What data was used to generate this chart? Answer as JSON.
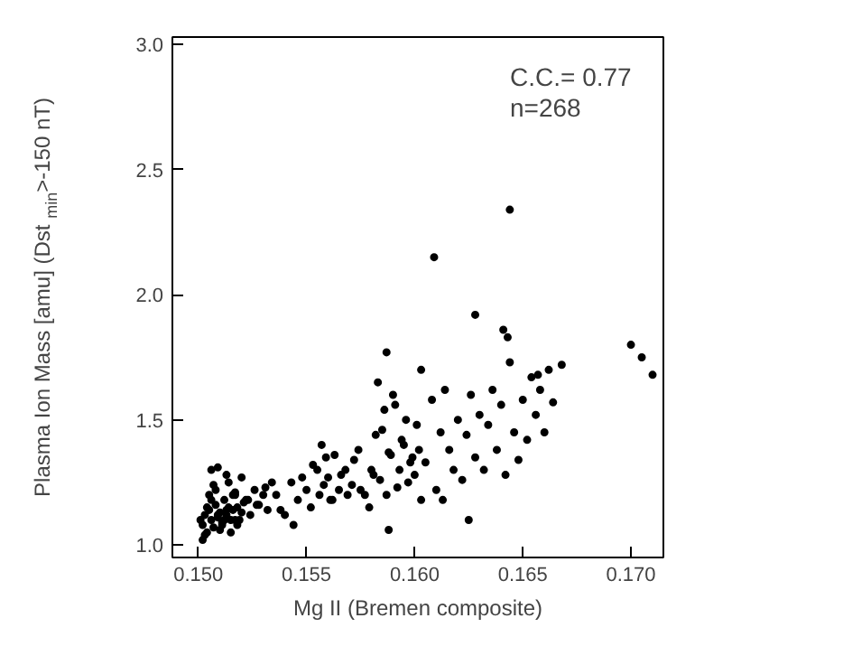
{
  "chart_data": {
    "type": "scatter",
    "xlabel": "Mg II (Bremen composite)",
    "ylabel": "Plasma Ion Mass [amu]  (Dst$_{min}$>-150 nT)",
    "annotations": [
      "C.C.= 0.77",
      "n=268"
    ],
    "xlim": [
      0.1488,
      0.1715
    ],
    "ylim": [
      0.95,
      3.03
    ],
    "xticks": [
      {
        "value": 0.15,
        "label": "0.150"
      },
      {
        "value": 0.155,
        "label": "0.155"
      },
      {
        "value": 0.16,
        "label": "0.160"
      },
      {
        "value": 0.165,
        "label": "0.165"
      },
      {
        "value": 0.17,
        "label": "0.170"
      }
    ],
    "yticks": [
      {
        "value": 1.0,
        "label": "1.0"
      },
      {
        "value": 1.5,
        "label": "1.5"
      },
      {
        "value": 2.0,
        "label": "2.0"
      },
      {
        "value": 2.5,
        "label": "2.5"
      },
      {
        "value": 3.0,
        "label": "3.0"
      }
    ],
    "grid": false,
    "marker": "circle",
    "series": [
      {
        "color": "#000000",
        "x": [
          0.1501,
          0.1502,
          0.1503,
          0.1504,
          0.1505,
          0.1506,
          0.1507,
          0.1508,
          0.1509,
          0.151,
          0.1511,
          0.1512,
          0.1513,
          0.1514,
          0.1515,
          0.1516,
          0.1517,
          0.1518,
          0.152,
          0.1521,
          0.1502,
          0.1504,
          0.1506,
          0.1508,
          0.151,
          0.1512,
          0.1514,
          0.1516,
          0.1518,
          0.152,
          0.1503,
          0.1505,
          0.1507,
          0.1509,
          0.1511,
          0.1513,
          0.1515,
          0.1517,
          0.1519,
          0.1522,
          0.1524,
          0.1526,
          0.1528,
          0.153,
          0.1532,
          0.1534,
          0.1506,
          0.1509,
          0.1513,
          0.1517,
          0.1523,
          0.1527,
          0.1531,
          0.1536,
          0.154,
          0.1543,
          0.1546,
          0.155,
          0.1553,
          0.1556,
          0.1548,
          0.1552,
          0.1555,
          0.1558,
          0.1561,
          0.1563,
          0.1566,
          0.1569,
          0.1572,
          0.1575,
          0.1544,
          0.1538,
          0.1557,
          0.1559,
          0.156,
          0.1562,
          0.1565,
          0.1568,
          0.1571,
          0.1574,
          0.1577,
          0.158,
          0.1582,
          0.1584,
          0.1586,
          0.1588,
          0.159,
          0.1592,
          0.1594,
          0.1596,
          0.1598,
          0.16,
          0.1602,
          0.1579,
          0.1581,
          0.1583,
          0.1585,
          0.1587,
          0.1589,
          0.1591,
          0.1593,
          0.1595,
          0.1597,
          0.1599,
          0.1601,
          0.1603,
          0.1605,
          0.1608,
          0.161,
          0.1612,
          0.1614,
          0.1616,
          0.1618,
          0.162,
          0.1622,
          0.1624,
          0.1626,
          0.1628,
          0.163,
          0.1632,
          0.1634,
          0.1636,
          0.1638,
          0.164,
          0.1642,
          0.1644,
          0.1646,
          0.1648,
          0.165,
          0.1652,
          0.1654,
          0.1656,
          0.1658,
          0.166,
          0.1662,
          0.1664,
          0.1609,
          0.1628,
          0.1644,
          0.1641,
          0.1643,
          0.1668,
          0.1657,
          0.17,
          0.1705,
          0.171,
          0.1613,
          0.1625,
          0.1587,
          0.1588,
          0.1603
        ],
        "values": [
          1.1,
          1.08,
          1.12,
          1.05,
          1.14,
          1.1,
          1.07,
          1.16,
          1.11,
          1.13,
          1.09,
          1.18,
          1.12,
          1.15,
          1.1,
          1.14,
          1.2,
          1.08,
          1.13,
          1.17,
          1.02,
          1.15,
          1.18,
          1.22,
          1.06,
          1.1,
          1.25,
          1.2,
          1.15,
          1.27,
          1.04,
          1.2,
          1.24,
          1.12,
          1.08,
          1.14,
          1.05,
          1.21,
          1.1,
          1.18,
          1.12,
          1.22,
          1.16,
          1.2,
          1.14,
          1.25,
          1.3,
          1.31,
          1.28,
          1.1,
          1.18,
          1.16,
          1.23,
          1.2,
          1.12,
          1.25,
          1.18,
          1.22,
          1.32,
          1.2,
          1.27,
          1.15,
          1.3,
          1.24,
          1.18,
          1.36,
          1.28,
          1.2,
          1.34,
          1.22,
          1.08,
          1.14,
          1.4,
          1.35,
          1.27,
          1.18,
          1.22,
          1.3,
          1.24,
          1.38,
          1.2,
          1.3,
          1.44,
          1.26,
          1.54,
          1.37,
          1.6,
          1.23,
          1.42,
          1.5,
          1.33,
          1.28,
          1.38,
          1.15,
          1.28,
          1.65,
          1.46,
          1.2,
          1.36,
          1.56,
          1.3,
          1.4,
          1.25,
          1.35,
          1.48,
          1.18,
          1.33,
          1.58,
          1.22,
          1.45,
          1.62,
          1.38,
          1.3,
          1.5,
          1.26,
          1.44,
          1.6,
          1.35,
          1.52,
          1.3,
          1.48,
          1.62,
          1.38,
          1.56,
          1.28,
          1.73,
          1.45,
          1.34,
          1.58,
          1.42,
          1.67,
          1.52,
          1.62,
          1.45,
          1.7,
          1.57,
          2.15,
          1.92,
          2.34,
          1.86,
          1.83,
          1.72,
          1.68,
          1.8,
          1.75,
          1.68,
          1.18,
          1.1,
          1.77,
          1.06,
          1.7
        ]
      }
    ]
  }
}
